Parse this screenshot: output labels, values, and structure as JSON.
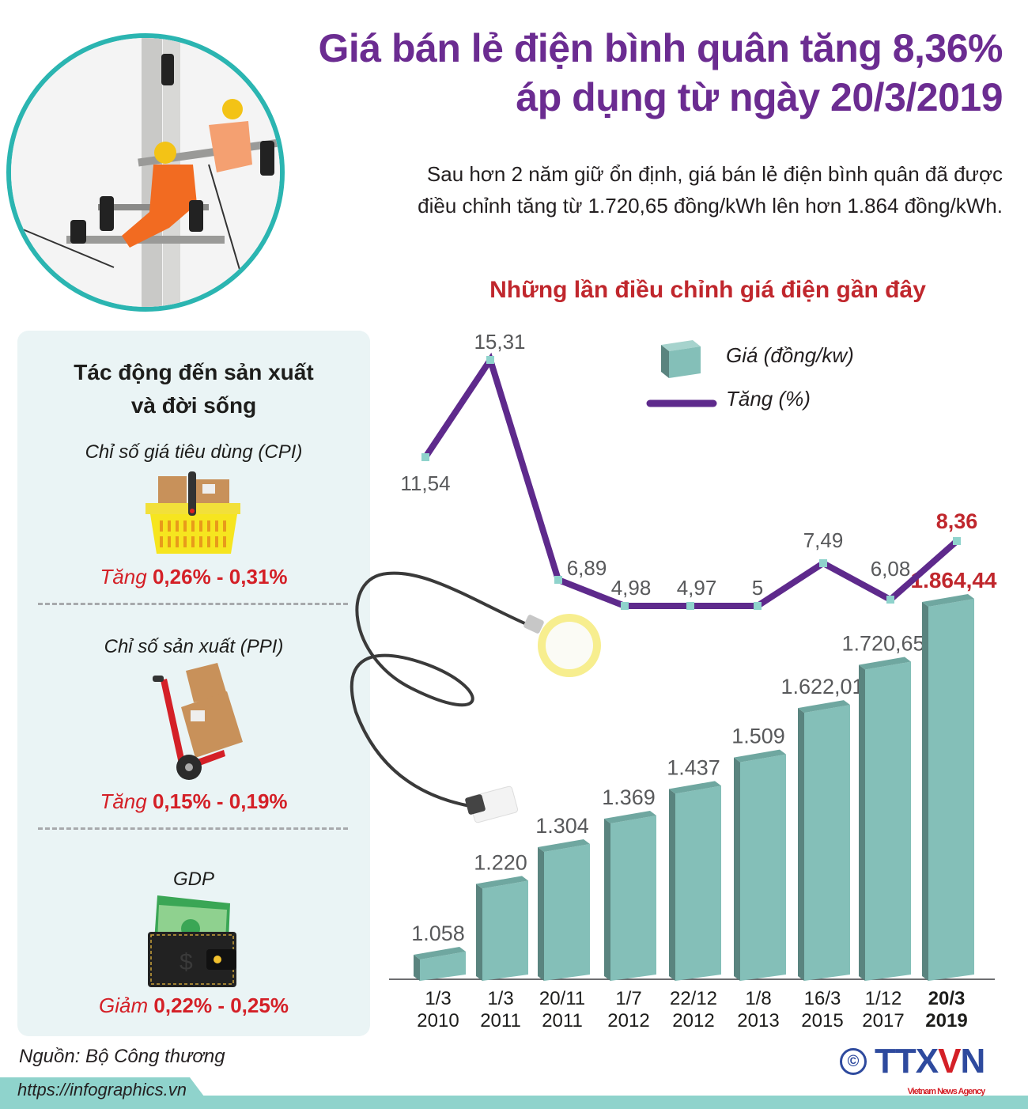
{
  "header": {
    "title_line1": "Giá bán lẻ điện bình quân tăng 8,36%",
    "title_line2": "áp dụng từ ngày 20/3/2019",
    "subtitle_line1": "Sau hơn 2 năm giữ ổn định, giá bán lẻ điện bình quân đã được",
    "subtitle_line2": "điều chỉnh tăng từ 1.720,65 đồng/kWh lên hơn 1.864 đồng/kWh.",
    "photo_icon": "electricity-workers-on-pole-photo"
  },
  "impact_panel": {
    "heading_line1": "Tác động đến sản xuất",
    "heading_line2": "và đời sống",
    "items": [
      {
        "label": "Chỉ số giá tiêu dùng (CPI)",
        "verb": "Tăng",
        "range": "0,26% - 0,31%",
        "icon": "shopping-basket-icon"
      },
      {
        "label": "Chỉ số sản xuất (PPI)",
        "verb": "Tăng",
        "range": "0,15% - 0,19%",
        "icon": "hand-truck-boxes-icon"
      },
      {
        "label": "GDP",
        "verb": "Giảm",
        "range": "0,22% - 0,25%",
        "icon": "wallet-money-icon"
      }
    ]
  },
  "footer": {
    "source": "Nguồn: Bộ Công thương",
    "url": "https://infographics.vn",
    "copyright": "©",
    "logo_text_a": "TTX",
    "logo_text_v": "V",
    "logo_text_b": "N",
    "logo_tagline": "Vietnam News Agency"
  },
  "colors": {
    "title_purple": "#6b2c91",
    "line_purple": "#5e2a8c",
    "bar_teal": "#84bfb8",
    "bar_teal_dark": "#5a847f",
    "highlight_red": "#c0272d",
    "panel_bg": "#eaf4f5",
    "circle_border": "#2bb5b1"
  },
  "chart_data": {
    "type": "bar+line",
    "title": "Những lần điều chỉnh giá điện gần đây",
    "categories": [
      "1/3 2010",
      "1/3 2011",
      "20/11 2011",
      "1/7 2012",
      "22/12 2012",
      "1/8 2013",
      "16/3 2015",
      "1/12 2017",
      "20/3 2019"
    ],
    "category_lines": [
      [
        "1/3",
        "2010"
      ],
      [
        "1/3",
        "2011"
      ],
      [
        "20/11",
        "2011"
      ],
      [
        "1/7",
        "2012"
      ],
      [
        "22/12",
        "2012"
      ],
      [
        "1/8",
        "2013"
      ],
      [
        "16/3",
        "2015"
      ],
      [
        "1/12",
        "2017"
      ],
      [
        "20/3",
        "2019"
      ]
    ],
    "series": [
      {
        "name": "Giá (đồng/kw)",
        "type": "bar",
        "values": [
          1058,
          1220,
          1304,
          1369,
          1437,
          1509,
          1622.01,
          1720.65,
          1864.44
        ],
        "labels": [
          "1.058",
          "1.220",
          "1.304",
          "1.369",
          "1.437",
          "1.509",
          "1.622,01",
          "1.720,65",
          "1.864,44"
        ]
      },
      {
        "name": "Tăng (%)",
        "type": "line",
        "values": [
          11.54,
          15.31,
          6.89,
          4.98,
          4.97,
          5,
          7.49,
          6.08,
          8.36
        ],
        "labels": [
          "11,54",
          "15,31",
          "6,89",
          "4,98",
          "4,97",
          "5",
          "7,49",
          "6,08",
          "8,36"
        ]
      }
    ],
    "legend": [
      "Giá (đồng/kw)",
      "Tăng (%)"
    ],
    "legend_position": "top-right",
    "highlight_last": true,
    "grid": false,
    "xlabel": "",
    "ylabel": ""
  }
}
